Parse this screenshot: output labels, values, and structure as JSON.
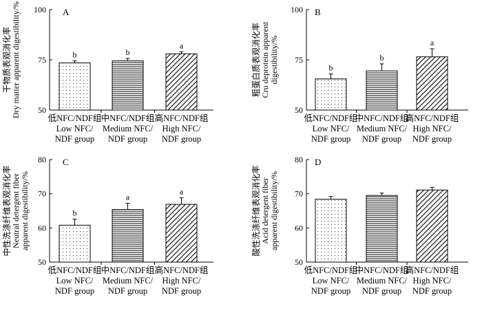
{
  "figure": {
    "categories": [
      [
        "低NFC/NDF组",
        "Low NFC/",
        "NDF group"
      ],
      [
        "中NFC/NDF组",
        "Medium NFC/",
        "NDF group"
      ],
      [
        "高NFC/NDF组",
        "High NFC/",
        "NDF group"
      ]
    ],
    "patterns": [
      "dots",
      "horizontal",
      "diagonal"
    ]
  },
  "chart_data": [
    {
      "type": "bar",
      "panel": "A",
      "ylabel": [
        "干物质表观消化率",
        "Dry matter apparent digestibility/%"
      ],
      "ylim": [
        50,
        100
      ],
      "yticks": [
        50,
        75,
        100
      ],
      "values": [
        73.5,
        74.5,
        78.0
      ],
      "errors": [
        1.0,
        1.2,
        1.0
      ],
      "significance": [
        "b",
        "b",
        "a"
      ]
    },
    {
      "type": "bar",
      "panel": "B",
      "ylabel": [
        "粗蛋白质表观消化率",
        "Cru deprotein apparent",
        "digestibility/%"
      ],
      "ylim": [
        50,
        100
      ],
      "yticks": [
        50,
        75,
        100
      ],
      "values": [
        65.5,
        69.5,
        76.5
      ],
      "errors": [
        2.5,
        3.5,
        4.0
      ],
      "significance": [
        "b",
        "b",
        "a"
      ]
    },
    {
      "type": "bar",
      "panel": "C",
      "ylabel": [
        "中性洗涤纤维表观消化率",
        "Neutral detergent fiber",
        "apparent digestibility/%"
      ],
      "ylim": [
        50,
        80
      ],
      "yticks": [
        50,
        60,
        70,
        80
      ],
      "values": [
        60.8,
        65.4,
        66.9
      ],
      "errors": [
        1.8,
        1.8,
        1.9
      ],
      "significance": [
        "b",
        "a",
        "a"
      ]
    },
    {
      "type": "bar",
      "panel": "D",
      "ylabel": [
        "酸性洗涤纤维表观消化率",
        "Acid detergent fiber",
        "apparent digestibility/%"
      ],
      "ylim": [
        50,
        80
      ],
      "yticks": [
        50,
        60,
        70,
        80
      ],
      "values": [
        68.4,
        69.5,
        71.1
      ],
      "errors": [
        0.8,
        0.7,
        0.8
      ],
      "significance": [
        "",
        "",
        ""
      ]
    }
  ]
}
